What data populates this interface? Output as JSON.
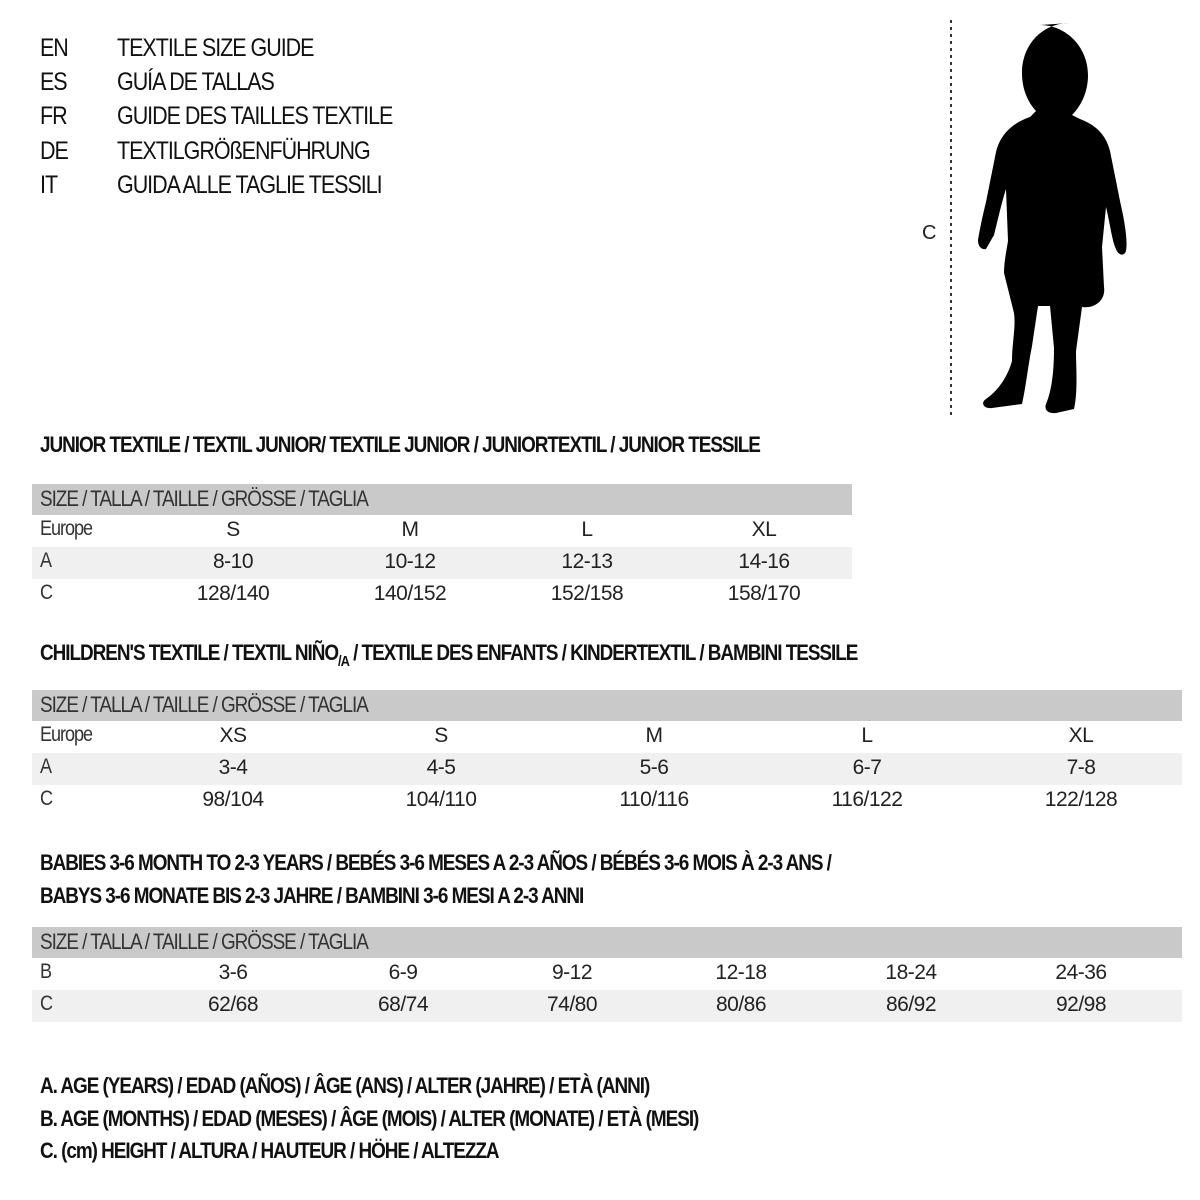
{
  "languages": [
    {
      "code": "EN",
      "text": "TEXTILE SIZE GUIDE"
    },
    {
      "code": "ES",
      "text": "GUÍA DE TALLAS"
    },
    {
      "code": "FR",
      "text": "GUIDE DES TAILLES TEXTILE"
    },
    {
      "code": "DE",
      "text": "TEXTILGRÖßENFÜHRUNG"
    },
    {
      "code": "IT",
      "text": "GUIDA ALLE TAGLIE TESSILI"
    }
  ],
  "figure": {
    "height_label": "C"
  },
  "size_header": "SIZE / TALLA / TAILLE / GRÖSSE / TAGLIA",
  "junior": {
    "title": "JUNIOR TEXTILE / TEXTIL JUNIOR/ TEXTILE JUNIOR / JUNIORTEXTIL / JUNIOR TESSILE",
    "rows": [
      {
        "label": "Europe",
        "values": [
          "S",
          "M",
          "L",
          "XL"
        ]
      },
      {
        "label": "A",
        "values": [
          "8-10",
          "10-12",
          "12-13",
          "14-16"
        ]
      },
      {
        "label": "C",
        "values": [
          "128/140",
          "140/152",
          "152/158",
          "158/170"
        ]
      }
    ]
  },
  "children": {
    "title_a": "CHILDREN'S TEXTILE / TEXTIL NIÑO",
    "title_sub": "/A",
    "title_b": " / TEXTILE DES ENFANTS / KINDERTEXTIL / BAMBINI TESSILE",
    "rows": [
      {
        "label": "Europe",
        "values": [
          "XS",
          "S",
          "M",
          "L",
          "XL"
        ]
      },
      {
        "label": "A",
        "values": [
          "3-4",
          "4-5",
          "5-6",
          "6-7",
          "7-8"
        ]
      },
      {
        "label": "C",
        "values": [
          "98/104",
          "104/110",
          "110/116",
          "116/122",
          "122/128"
        ]
      }
    ]
  },
  "babies": {
    "title_line1": "BABIES 3-6 MONTH TO 2-3 YEARS / BEBÉS 3-6 MESES A 2-3 AÑOS / BÉBÉS 3-6 MOIS À 2-3 ANS /",
    "title_line2": "BABYS 3-6 MONATE BIS 2-3 JAHRE / BAMBINI 3-6 MESI A 2-3 ANNI",
    "rows": [
      {
        "label": "B",
        "values": [
          "3-6",
          "6-9",
          "9-12",
          "12-18",
          "18-24",
          "24-36"
        ]
      },
      {
        "label": "C",
        "values": [
          "62/68",
          "68/74",
          "74/80",
          "80/86",
          "86/92",
          "92/98"
        ]
      }
    ]
  },
  "legend": [
    "A. AGE (YEARS) / EDAD (AÑOS) / ÂGE (ANS) / ALTER (JAHRE) / ETÀ (ANNI)",
    "B. AGE (MONTHS) / EDAD (MESES) / ÂGE (MOIS) / ALTER (MONATE) / ETÀ (MESI)",
    "C. (cm) HEIGHT / ALTURA / HAUTEUR / HÖHE / ALTEZZA"
  ]
}
